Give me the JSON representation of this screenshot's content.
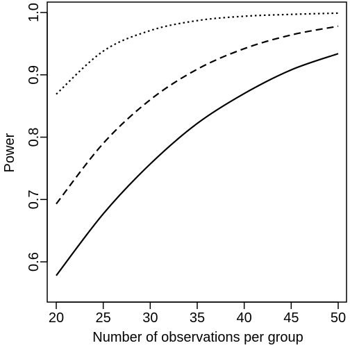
{
  "chart_data": {
    "type": "line",
    "title": "",
    "xlabel": "Number of observations per group",
    "ylabel": "Power",
    "xlim": [
      20,
      50
    ],
    "ylim": [
      0.58,
      1.0
    ],
    "xticks": [
      20,
      25,
      30,
      35,
      40,
      45,
      50
    ],
    "yticks": [
      0.6,
      0.7,
      0.8,
      0.9,
      1.0
    ],
    "ytick_labels": [
      "0.6",
      "0.7",
      "0.8",
      "0.9",
      "1.0"
    ],
    "grid": false,
    "legend": "none",
    "color": "#000000",
    "x": [
      20,
      25,
      30,
      35,
      40,
      45,
      50
    ],
    "series": [
      {
        "line_style": "solid",
        "values": [
          0.578,
          0.677,
          0.757,
          0.822,
          0.87,
          0.908,
          0.934
        ]
      },
      {
        "line_style": "dashed",
        "values": [
          0.693,
          0.79,
          0.86,
          0.909,
          0.942,
          0.964,
          0.978
        ]
      },
      {
        "line_style": "dotted",
        "values": [
          0.869,
          0.938,
          0.971,
          0.987,
          0.994,
          0.997,
          0.999
        ]
      }
    ]
  }
}
